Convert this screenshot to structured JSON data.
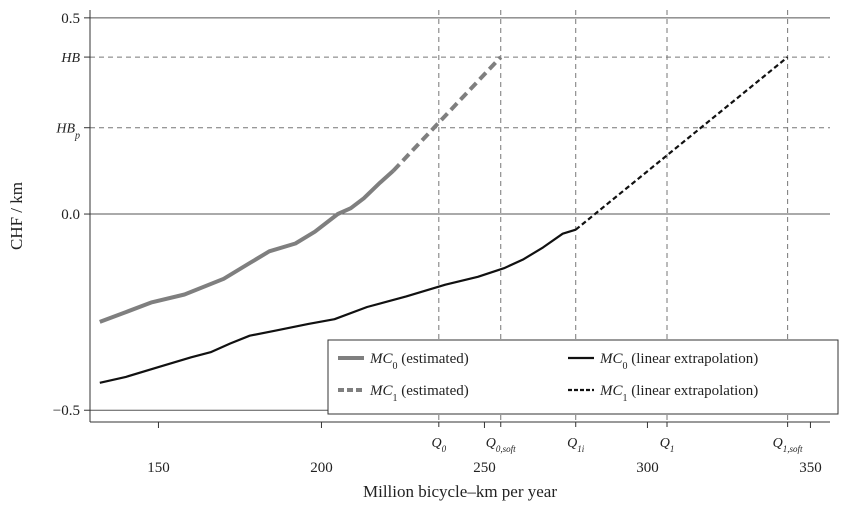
{
  "chart_data": {
    "type": "line",
    "xlabel": "Million bicycle–km per year",
    "ylabel": "CHF / km",
    "xlim": [
      129,
      356
    ],
    "ylim": [
      -0.53,
      0.52
    ],
    "x_ticks": [
      {
        "value": 150,
        "label": "150"
      },
      {
        "value": 200,
        "label": "200"
      },
      {
        "value": 250,
        "label": "250"
      },
      {
        "value": 300,
        "label": "300"
      },
      {
        "value": 350,
        "label": "350"
      }
    ],
    "y_ticks": [
      {
        "value": 0.5,
        "label": "0.5"
      },
      {
        "value": 0.0,
        "label": "0.0"
      },
      {
        "value": -0.5,
        "label": "−0.5"
      }
    ],
    "h_reference_lines": [
      {
        "name": "hb",
        "value": 0.4,
        "label": "HB",
        "sub": ""
      },
      {
        "name": "hbp",
        "value": 0.22,
        "label": "HB",
        "sub": "p"
      }
    ],
    "v_reference_lines": [
      {
        "name": "q0",
        "value": 236,
        "label": "Q",
        "sub": "0"
      },
      {
        "name": "q0-soft",
        "value": 255,
        "label": "Q",
        "sub": "0,soft"
      },
      {
        "name": "q1i",
        "value": 278,
        "label": "Q",
        "sub": "1i"
      },
      {
        "name": "q1",
        "value": 306,
        "label": "Q",
        "sub": "1"
      },
      {
        "name": "q1-soft",
        "value": 343,
        "label": "Q",
        "sub": "1,soft"
      }
    ],
    "series": [
      {
        "key": "mc0-estimated",
        "label_main": "MC",
        "label_sub": "0",
        "label_rest": " (estimated)",
        "color": "#7f7f7f",
        "width": 4,
        "dash": "",
        "points": [
          [
            132,
            -0.275
          ],
          [
            140,
            -0.25
          ],
          [
            148,
            -0.225
          ],
          [
            158,
            -0.205
          ],
          [
            170,
            -0.165
          ],
          [
            178,
            -0.125
          ],
          [
            184,
            -0.095
          ],
          [
            192,
            -0.075
          ],
          [
            198,
            -0.045
          ],
          [
            205,
            0.0
          ],
          [
            209,
            0.015
          ],
          [
            213,
            0.04
          ],
          [
            218,
            0.08
          ],
          [
            222,
            0.11
          ]
        ]
      },
      {
        "key": "mc1-estimated",
        "label_main": "MC",
        "label_sub": "1",
        "label_rest": " (estimated)",
        "color": "#7f7f7f",
        "width": 4,
        "dash": "9,5",
        "points": [
          [
            222,
            0.11
          ],
          [
            255,
            0.4
          ]
        ]
      },
      {
        "key": "mc0-linear",
        "label_main": "MC",
        "label_sub": "0",
        "label_rest": " (linear extrapolation)",
        "color": "#111111",
        "width": 2.2,
        "dash": "",
        "points": [
          [
            132,
            -0.43
          ],
          [
            140,
            -0.415
          ],
          [
            150,
            -0.39
          ],
          [
            160,
            -0.365
          ],
          [
            166,
            -0.352
          ],
          [
            172,
            -0.33
          ],
          [
            178,
            -0.31
          ],
          [
            186,
            -0.297
          ],
          [
            196,
            -0.28
          ],
          [
            204,
            -0.268
          ],
          [
            214,
            -0.237
          ],
          [
            226,
            -0.21
          ],
          [
            238,
            -0.18
          ],
          [
            248,
            -0.16
          ],
          [
            256,
            -0.138
          ],
          [
            262,
            -0.115
          ],
          [
            268,
            -0.085
          ],
          [
            274,
            -0.05
          ],
          [
            278,
            -0.04
          ]
        ]
      },
      {
        "key": "mc1-linear",
        "label_main": "MC",
        "label_sub": "1",
        "label_rest": " (linear extrapolation)",
        "color": "#111111",
        "width": 2.2,
        "dash": "5,3",
        "points": [
          [
            278,
            -0.04
          ],
          [
            343,
            0.4
          ]
        ]
      }
    ],
    "legend": {
      "position": "bottom-right",
      "order": [
        "mc0-estimated",
        "mc0-linear",
        "mc1-estimated",
        "mc1-linear"
      ]
    }
  }
}
